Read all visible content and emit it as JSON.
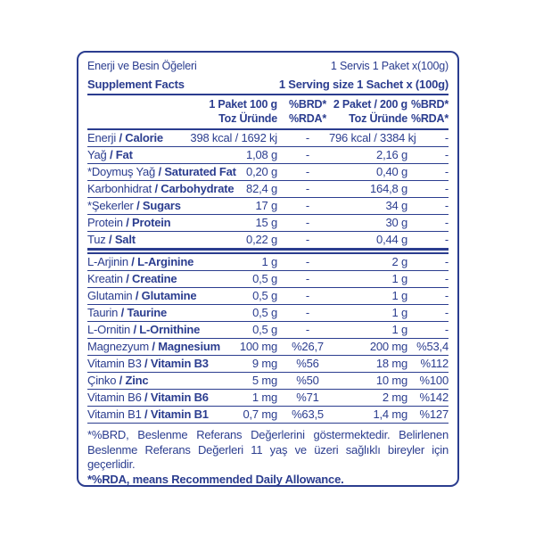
{
  "colors": {
    "text": "#2b3d8f",
    "border": "#2b3d8f",
    "background": "#ffffff"
  },
  "header": {
    "title_tr": "Enerji ve Besin Öğeleri",
    "title_en": "Supplement Facts",
    "serving_tr": "1 Servis 1 Paket x(100g)",
    "serving_en": "1 Serving size 1 Sachet x (100g)"
  },
  "columns": [
    {
      "line1": "1 Paket 100 g",
      "line2": "Toz Üründe"
    },
    {
      "line1": "%BRD*",
      "line2": "%RDA*"
    },
    {
      "line1": "2 Paket / 200 g",
      "line2": "Toz Üründe"
    },
    {
      "line1": "%BRD*",
      "line2": "%RDA*"
    }
  ],
  "rows": [
    {
      "name_tr": "Enerji",
      "name_en": "Calorie",
      "amount1": "398 kcal / 1692 kj",
      "brd1": "-",
      "amount2": "796 kcal / 3384 kj",
      "brd2": "-"
    },
    {
      "name_tr": "Yağ",
      "name_en": "Fat",
      "amount1": "1,08 g",
      "brd1": "-",
      "amount2": "2,16 g",
      "brd2": "-"
    },
    {
      "name_tr": "*Doymuş Yağ",
      "name_en": "Saturated Fat",
      "amount1": "0,20 g",
      "brd1": "-",
      "amount2": "0,40 g",
      "brd2": "-"
    },
    {
      "name_tr": "Karbonhidrat",
      "name_en": "Carbohydrate",
      "amount1": "82,4 g",
      "brd1": "-",
      "amount2": "164,8 g",
      "brd2": "-"
    },
    {
      "name_tr": "*Şekerler",
      "name_en": "Sugars",
      "amount1": "17 g",
      "brd1": "-",
      "amount2": "34 g",
      "brd2": "-"
    },
    {
      "name_tr": "Protein",
      "name_en": "Protein",
      "amount1": "15 g",
      "brd1": "-",
      "amount2": "30 g",
      "brd2": "-"
    },
    {
      "name_tr": "Tuz",
      "name_en": "Salt",
      "amount1": "0,22 g",
      "brd1": "-",
      "amount2": "0,44 g",
      "brd2": "-",
      "heavy_rule_after": true
    },
    {
      "name_tr": "L-Arjinin",
      "name_en": "L-Arginine",
      "amount1": "1 g",
      "brd1": "-",
      "amount2": "2 g",
      "brd2": "-"
    },
    {
      "name_tr": "Kreatin",
      "name_en": "Creatine",
      "amount1": "0,5 g",
      "brd1": "-",
      "amount2": "1 g",
      "brd2": "-"
    },
    {
      "name_tr": "Glutamin",
      "name_en": "Glutamine",
      "amount1": "0,5 g",
      "brd1": "-",
      "amount2": "1 g",
      "brd2": "-"
    },
    {
      "name_tr": "Taurin",
      "name_en": "Taurine",
      "amount1": "0,5 g",
      "brd1": "-",
      "amount2": "1 g",
      "brd2": "-"
    },
    {
      "name_tr": "L-Ornitin",
      "name_en": "L-Ornithine",
      "amount1": "0,5 g",
      "brd1": "-",
      "amount2": "1 g",
      "brd2": "-"
    },
    {
      "name_tr": "Magnezyum",
      "name_en": "Magnesium",
      "amount1": "100 mg",
      "brd1": "%26,7",
      "amount2": "200 mg",
      "brd2": "%53,4"
    },
    {
      "name_tr": "Vitamin B3",
      "name_en": "Vitamin B3",
      "amount1": "9 mg",
      "brd1": "%56",
      "amount2": "18 mg",
      "brd2": "%112"
    },
    {
      "name_tr": "Çinko",
      "name_en": "Zinc",
      "amount1": "5 mg",
      "brd1": "%50",
      "amount2": "10 mg",
      "brd2": "%100"
    },
    {
      "name_tr": "Vitamin B6",
      "name_en": "Vitamin B6",
      "amount1": "1 mg",
      "brd1": "%71",
      "amount2": "2 mg",
      "brd2": "%142"
    },
    {
      "name_tr": "Vitamin B1",
      "name_en": "Vitamin B1",
      "amount1": "0,7 mg",
      "brd1": "%63,5",
      "amount2": "1,4 mg",
      "brd2": "%127"
    }
  ],
  "footnotes": {
    "brd": "*%BRD, Beslenme Referans Değerlerini göstermektedir. Belirlenen Beslenme Referans Değerleri 11 yaş ve üzeri sağlıklı bireyler için geçerlidir.",
    "rda": "*%RDA, means Recommended Daily Allowance."
  }
}
